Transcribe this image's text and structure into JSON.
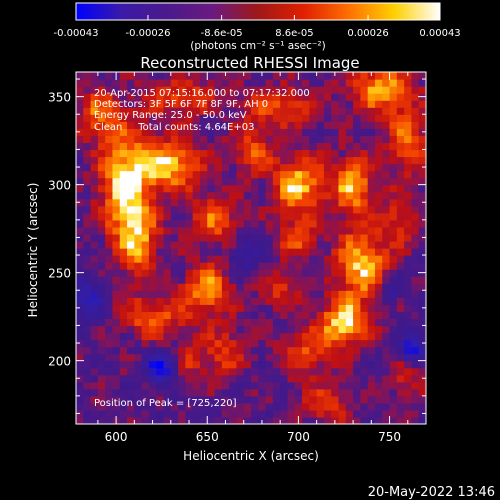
{
  "chart_data": {
    "type": "heatmap",
    "title": "Reconstructed RHESSI Image",
    "xlabel": "Heliocentric X (arcsec)",
    "ylabel": "Heliocentric Y (arcsec)",
    "xlim": [
      578,
      770
    ],
    "ylim": [
      164,
      364
    ],
    "x_ticks": [
      600,
      650,
      700,
      750
    ],
    "y_ticks": [
      200,
      250,
      300,
      350
    ],
    "x_tick_labels": [
      "600",
      "650",
      "700",
      "750"
    ],
    "y_tick_labels": [
      "200",
      "250",
      "300",
      "350"
    ],
    "colorbar": {
      "min": -0.00043,
      "max": 0.00043,
      "tick_values": [
        -0.00043,
        -0.00026,
        -8.6e-05,
        8.6e-05,
        0.00026,
        0.00043
      ],
      "tick_labels": [
        "-0.00043",
        "-0.00026",
        "-8.6e-05",
        "8.6e-05",
        "0.00026",
        "0.00043"
      ],
      "unit_label": "(photons cm⁻² s⁻¹ asec⁻²)",
      "colors": [
        "#0000ff",
        "#3a1aa8",
        "#4a1a8c",
        "#6a1a80",
        "#a01818",
        "#e02000",
        "#ff7000",
        "#ffd000",
        "#ffffff"
      ]
    },
    "annotations": [
      "20-Apr-2015 07:15:16.000 to 07:17:32.000",
      "Detectors: 3F 5F 6F 7F 8F 9F, AH 0",
      "Energy Range: 25.0 - 50.0 keV",
      "Clean     Total counts: 4.64E+03"
    ],
    "peak_label": "Position of Peak = [725,220]",
    "footer_date": "20-May-2022 13:46",
    "structures": [
      {
        "x": 605,
        "y": 302,
        "sx": 10,
        "sy": 22,
        "amp": 1.0
      },
      {
        "x": 630,
        "y": 312,
        "sx": 12,
        "sy": 10,
        "amp": 0.9
      },
      {
        "x": 612,
        "y": 268,
        "sx": 8,
        "sy": 14,
        "amp": 0.7
      },
      {
        "x": 590,
        "y": 340,
        "sx": 8,
        "sy": 10,
        "amp": 0.6
      },
      {
        "x": 635,
        "y": 350,
        "sx": 14,
        "sy": 8,
        "amp": 0.55
      },
      {
        "x": 650,
        "y": 240,
        "sx": 10,
        "sy": 10,
        "amp": 0.8
      },
      {
        "x": 620,
        "y": 225,
        "sx": 12,
        "sy": 8,
        "amp": 0.65
      },
      {
        "x": 660,
        "y": 205,
        "sx": 8,
        "sy": 10,
        "amp": 0.5
      },
      {
        "x": 700,
        "y": 300,
        "sx": 10,
        "sy": 12,
        "amp": 0.9
      },
      {
        "x": 730,
        "y": 300,
        "sx": 8,
        "sy": 12,
        "amp": 0.85
      },
      {
        "x": 735,
        "y": 255,
        "sx": 10,
        "sy": 14,
        "amp": 0.95
      },
      {
        "x": 725,
        "y": 222,
        "sx": 9,
        "sy": 9,
        "amp": 1.0
      },
      {
        "x": 700,
        "y": 270,
        "sx": 8,
        "sy": 8,
        "amp": 0.55
      },
      {
        "x": 690,
        "y": 240,
        "sx": 8,
        "sy": 8,
        "amp": 0.45
      },
      {
        "x": 705,
        "y": 205,
        "sx": 10,
        "sy": 10,
        "amp": 0.55
      },
      {
        "x": 715,
        "y": 175,
        "sx": 10,
        "sy": 8,
        "amp": 0.45
      },
      {
        "x": 745,
        "y": 355,
        "sx": 12,
        "sy": 10,
        "amp": 0.8
      },
      {
        "x": 760,
        "y": 325,
        "sx": 8,
        "sy": 14,
        "amp": 0.65
      },
      {
        "x": 690,
        "y": 345,
        "sx": 14,
        "sy": 8,
        "amp": 0.6
      },
      {
        "x": 675,
        "y": 320,
        "sx": 8,
        "sy": 10,
        "amp": 0.55
      },
      {
        "x": 655,
        "y": 280,
        "sx": 10,
        "sy": 10,
        "amp": 0.6
      },
      {
        "x": 640,
        "y": 200,
        "sx": 8,
        "sy": 8,
        "amp": 0.4
      },
      {
        "x": 755,
        "y": 280,
        "sx": 6,
        "sy": 10,
        "amp": 0.5
      },
      {
        "x": 760,
        "y": 190,
        "sx": 8,
        "sy": 10,
        "amp": 0.35
      }
    ],
    "negative_spots": [
      {
        "x": 625,
        "y": 196,
        "sx": 6,
        "sy": 6,
        "amp": 1.0
      },
      {
        "x": 763,
        "y": 207,
        "sx": 5,
        "sy": 6,
        "amp": 0.9
      },
      {
        "x": 585,
        "y": 235,
        "sx": 6,
        "sy": 10,
        "amp": 0.6
      },
      {
        "x": 670,
        "y": 260,
        "sx": 6,
        "sy": 8,
        "amp": 0.5
      },
      {
        "x": 750,
        "y": 240,
        "sx": 5,
        "sy": 6,
        "amp": 0.5
      }
    ]
  }
}
